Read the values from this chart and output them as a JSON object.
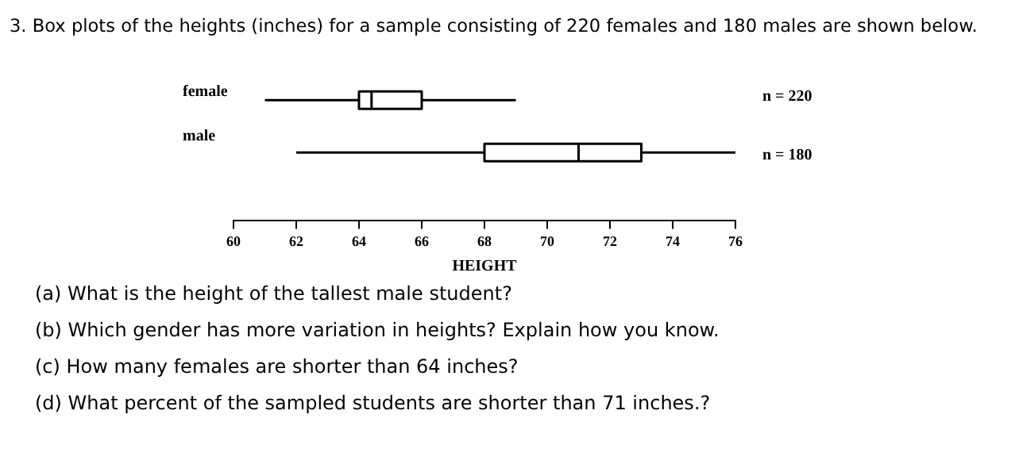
{
  "chart_data": {
    "type": "box",
    "title": "3. Box plots of the heights (inches) for a sample consisting of 220 females and 180 males are shown below.",
    "xlabel": "HEIGHT",
    "orientation": "horizontal",
    "categories": [
      "female",
      "male"
    ],
    "boxes": [
      {
        "low": 61,
        "q1": 64,
        "median": 64.4,
        "q3": 66,
        "high": 69
      },
      {
        "low": 62,
        "q1": 68,
        "median": 71,
        "q3": 73,
        "high": 76
      }
    ],
    "color": "#ffffff",
    "xlim": [
      60,
      76
    ],
    "xticks": [
      60,
      62,
      64,
      66,
      68,
      70,
      72,
      74,
      76
    ],
    "grid": false,
    "legend": false,
    "annotations": [
      "n = 220",
      "n = 180",
      "(a)  What is the height of the tallest male student?",
      "(b)  Which gender has more variation in heights? Explain how you know.",
      "(c)  How many females are shorter than 64 inches?",
      "(d)  What percent of the sampled students are shorter than 71 inches.?"
    ]
  }
}
